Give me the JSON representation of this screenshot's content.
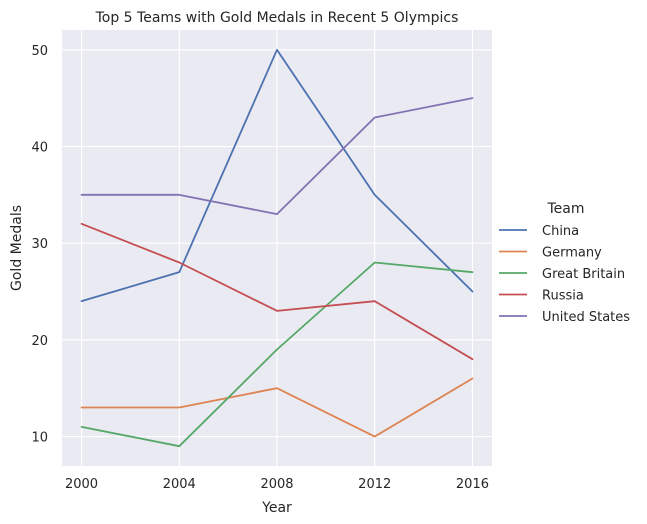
{
  "chart_data": {
    "type": "line",
    "title": "Top 5 Teams with Gold Medals in Recent 5 Olympics",
    "xlabel": "Year",
    "ylabel": "Gold Medals",
    "x": [
      2000,
      2004,
      2008,
      2012,
      2016
    ],
    "x_ticks": [
      "2000",
      "2004",
      "2008",
      "2012",
      "2016"
    ],
    "y_ticks": [
      "10",
      "20",
      "30",
      "40",
      "50"
    ],
    "xlim": [
      1999.2,
      2016.8
    ],
    "ylim": [
      6.95,
      52.05
    ],
    "grid": true,
    "legend": {
      "title": "Team",
      "placement": "right"
    },
    "series": [
      {
        "name": "China",
        "color": "#4c72b0",
        "values": [
          24,
          27,
          50,
          35,
          25
        ]
      },
      {
        "name": "Germany",
        "color": "#dd8452",
        "values": [
          13,
          13,
          15,
          10,
          16
        ]
      },
      {
        "name": "Great Britain",
        "color": "#55a868",
        "values": [
          11,
          9,
          19,
          28,
          27
        ]
      },
      {
        "name": "Russia",
        "color": "#c44e52",
        "values": [
          32,
          28,
          23,
          24,
          18
        ]
      },
      {
        "name": "United States",
        "color": "#8172b3",
        "values": [
          35,
          35,
          33,
          43,
          45
        ]
      }
    ],
    "colors": {
      "plot_background": "#eaeaf2",
      "grid": "#ffffff",
      "text": "#262626"
    }
  }
}
